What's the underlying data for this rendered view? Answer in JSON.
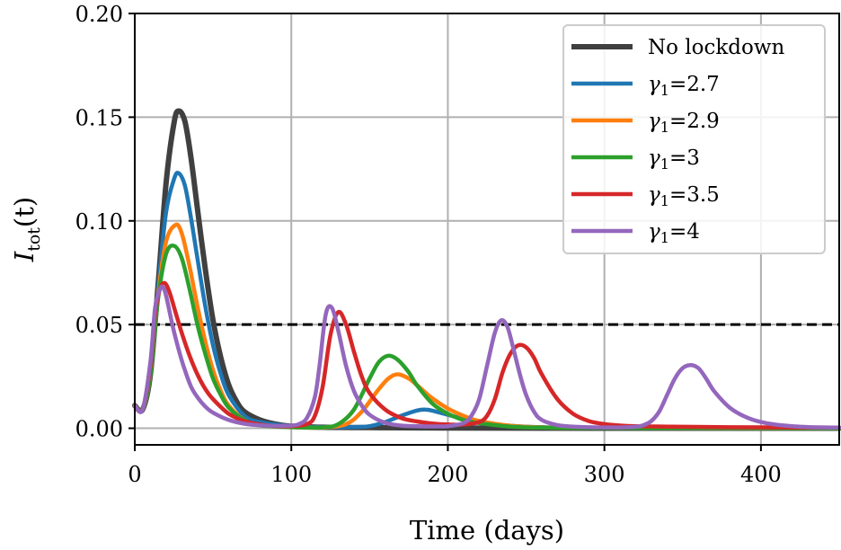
{
  "chart_data": {
    "type": "line",
    "xlabel": "Time (days)",
    "ylabel": {
      "main": "I",
      "sub": "tot",
      "arg": "(t)"
    },
    "xlim": [
      0,
      450
    ],
    "ylim": [
      -0.008,
      0.2
    ],
    "xticks": [
      0,
      100,
      200,
      300,
      400
    ],
    "yticks": [
      0.0,
      0.05,
      0.1,
      0.15,
      0.2
    ],
    "xtick_labels": [
      "0",
      "100",
      "200",
      "300",
      "400"
    ],
    "ytick_labels": [
      "0.00",
      "0.05",
      "0.10",
      "0.15",
      "0.20"
    ],
    "grid": true,
    "legend_position": "top-right",
    "threshold": {
      "y": 0.05,
      "style": "dashed",
      "color": "#000000"
    },
    "series": [
      {
        "name": "No lockdown",
        "label": {
          "text": "No lockdown"
        },
        "color": "#404040",
        "x": [
          0,
          5,
          10,
          15,
          20,
          25,
          28,
          32,
          36,
          40,
          45,
          50,
          55,
          60,
          65,
          70,
          80,
          90,
          100,
          120,
          150,
          200,
          300,
          450
        ],
        "y": [
          0.011,
          0.009,
          0.026,
          0.07,
          0.118,
          0.147,
          0.153,
          0.148,
          0.13,
          0.106,
          0.077,
          0.052,
          0.034,
          0.021,
          0.013,
          0.008,
          0.004,
          0.002,
          0.001,
          0.0005,
          0.0003,
          0.0001,
          0,
          0
        ]
      },
      {
        "name": "γ1=2.7",
        "label": {
          "symbol": "γ",
          "sub": "1",
          "value": "=2.7"
        },
        "color": "#1f77b4",
        "x": [
          0,
          5,
          10,
          15,
          20,
          25,
          28,
          32,
          36,
          40,
          45,
          50,
          55,
          60,
          70,
          80,
          100,
          120,
          140,
          150,
          160,
          170,
          180,
          185,
          190,
          200,
          210,
          220,
          240,
          260,
          300,
          450
        ],
        "y": [
          0.011,
          0.009,
          0.026,
          0.068,
          0.104,
          0.12,
          0.123,
          0.117,
          0.101,
          0.082,
          0.059,
          0.04,
          0.026,
          0.016,
          0.006,
          0.003,
          0.001,
          0.0005,
          0.0006,
          0.001,
          0.003,
          0.006,
          0.0085,
          0.009,
          0.0085,
          0.0065,
          0.0045,
          0.003,
          0.0012,
          0.0005,
          0.0001,
          0
        ]
      },
      {
        "name": "γ1=2.9",
        "label": {
          "symbol": "γ",
          "sub": "1",
          "value": "=2.9"
        },
        "color": "#ff7f0e",
        "x": [
          0,
          5,
          10,
          15,
          20,
          26,
          30,
          35,
          40,
          45,
          50,
          55,
          60,
          70,
          80,
          100,
          120,
          135,
          145,
          155,
          162,
          168,
          175,
          180,
          190,
          200,
          210,
          220,
          240,
          260,
          300,
          450
        ],
        "y": [
          0.011,
          0.009,
          0.026,
          0.065,
          0.09,
          0.098,
          0.094,
          0.078,
          0.059,
          0.042,
          0.028,
          0.018,
          0.011,
          0.004,
          0.0015,
          0.0006,
          0.0003,
          0.002,
          0.008,
          0.018,
          0.024,
          0.026,
          0.024,
          0.021,
          0.0145,
          0.0095,
          0.006,
          0.0035,
          0.0012,
          0.0004,
          0.0001,
          0
        ]
      },
      {
        "name": "γ1=3",
        "label": {
          "symbol": "γ",
          "sub": "1",
          "value": "=3"
        },
        "color": "#2ca02c",
        "x": [
          0,
          5,
          10,
          15,
          20,
          25,
          30,
          35,
          40,
          45,
          50,
          55,
          60,
          70,
          80,
          100,
          120,
          130,
          140,
          150,
          156,
          162,
          168,
          175,
          180,
          190,
          200,
          210,
          220,
          240,
          260,
          300,
          450
        ],
        "y": [
          0.011,
          0.009,
          0.026,
          0.063,
          0.084,
          0.088,
          0.082,
          0.067,
          0.05,
          0.036,
          0.024,
          0.016,
          0.01,
          0.004,
          0.0015,
          0.0005,
          0.0004,
          0.002,
          0.009,
          0.024,
          0.032,
          0.035,
          0.033,
          0.027,
          0.021,
          0.012,
          0.007,
          0.004,
          0.0025,
          0.0008,
          0.0003,
          0.0001,
          0
        ]
      },
      {
        "name": "γ1=3.5",
        "label": {
          "symbol": "γ",
          "sub": "1",
          "value": "=3.5"
        },
        "color": "#d62728",
        "x": [
          0,
          5,
          10,
          13,
          16,
          19,
          22,
          26,
          30,
          35,
          40,
          45,
          50,
          60,
          70,
          80,
          90,
          100,
          110,
          115,
          120,
          125,
          130,
          135,
          140,
          145,
          150,
          160,
          170,
          180,
          190,
          200,
          210,
          220,
          225,
          230,
          235,
          240,
          245,
          250,
          255,
          260,
          270,
          280,
          290,
          300,
          310,
          320,
          330,
          340,
          350,
          380,
          420,
          450
        ],
        "y": [
          0.011,
          0.009,
          0.03,
          0.055,
          0.067,
          0.07,
          0.066,
          0.056,
          0.046,
          0.035,
          0.026,
          0.019,
          0.014,
          0.007,
          0.0035,
          0.0018,
          0.001,
          0.001,
          0.002,
          0.006,
          0.02,
          0.045,
          0.056,
          0.05,
          0.037,
          0.025,
          0.017,
          0.009,
          0.005,
          0.0033,
          0.0023,
          0.0018,
          0.0018,
          0.003,
          0.006,
          0.014,
          0.027,
          0.036,
          0.04,
          0.039,
          0.034,
          0.026,
          0.014,
          0.007,
          0.0035,
          0.002,
          0.0013,
          0.001,
          0.0009,
          0.0008,
          0.0007,
          0.0005,
          0.0004,
          0.0003
        ]
      },
      {
        "name": "γ1=4",
        "label": {
          "symbol": "γ",
          "sub": "1",
          "value": "=4"
        },
        "color": "#9467bd",
        "x": [
          0,
          5,
          10,
          13,
          16,
          18,
          20,
          24,
          28,
          32,
          36,
          40,
          45,
          50,
          60,
          70,
          80,
          90,
          100,
          105,
          110,
          115,
          118,
          122,
          126,
          130,
          135,
          140,
          145,
          150,
          160,
          170,
          180,
          190,
          200,
          210,
          215,
          220,
          225,
          230,
          234,
          238,
          242,
          246,
          250,
          255,
          260,
          270,
          280,
          290,
          300,
          310,
          320,
          325,
          330,
          335,
          340,
          345,
          350,
          355,
          360,
          365,
          370,
          380,
          390,
          400,
          410,
          420,
          430,
          440,
          450
        ],
        "y": [
          0.011,
          0.009,
          0.032,
          0.058,
          0.067,
          0.068,
          0.064,
          0.05,
          0.038,
          0.028,
          0.02,
          0.015,
          0.0105,
          0.0075,
          0.004,
          0.0022,
          0.0014,
          0.0011,
          0.0013,
          0.002,
          0.005,
          0.015,
          0.03,
          0.055,
          0.058,
          0.047,
          0.03,
          0.018,
          0.011,
          0.0065,
          0.0026,
          0.0013,
          0.001,
          0.0009,
          0.001,
          0.0025,
          0.006,
          0.014,
          0.03,
          0.046,
          0.052,
          0.049,
          0.038,
          0.026,
          0.016,
          0.008,
          0.004,
          0.0015,
          0.0008,
          0.0005,
          0.0004,
          0.0004,
          0.0007,
          0.0015,
          0.0035,
          0.008,
          0.016,
          0.024,
          0.029,
          0.0305,
          0.029,
          0.024,
          0.018,
          0.01,
          0.0055,
          0.003,
          0.0017,
          0.001,
          0.0006,
          0.0004,
          0.0003
        ]
      }
    ]
  }
}
